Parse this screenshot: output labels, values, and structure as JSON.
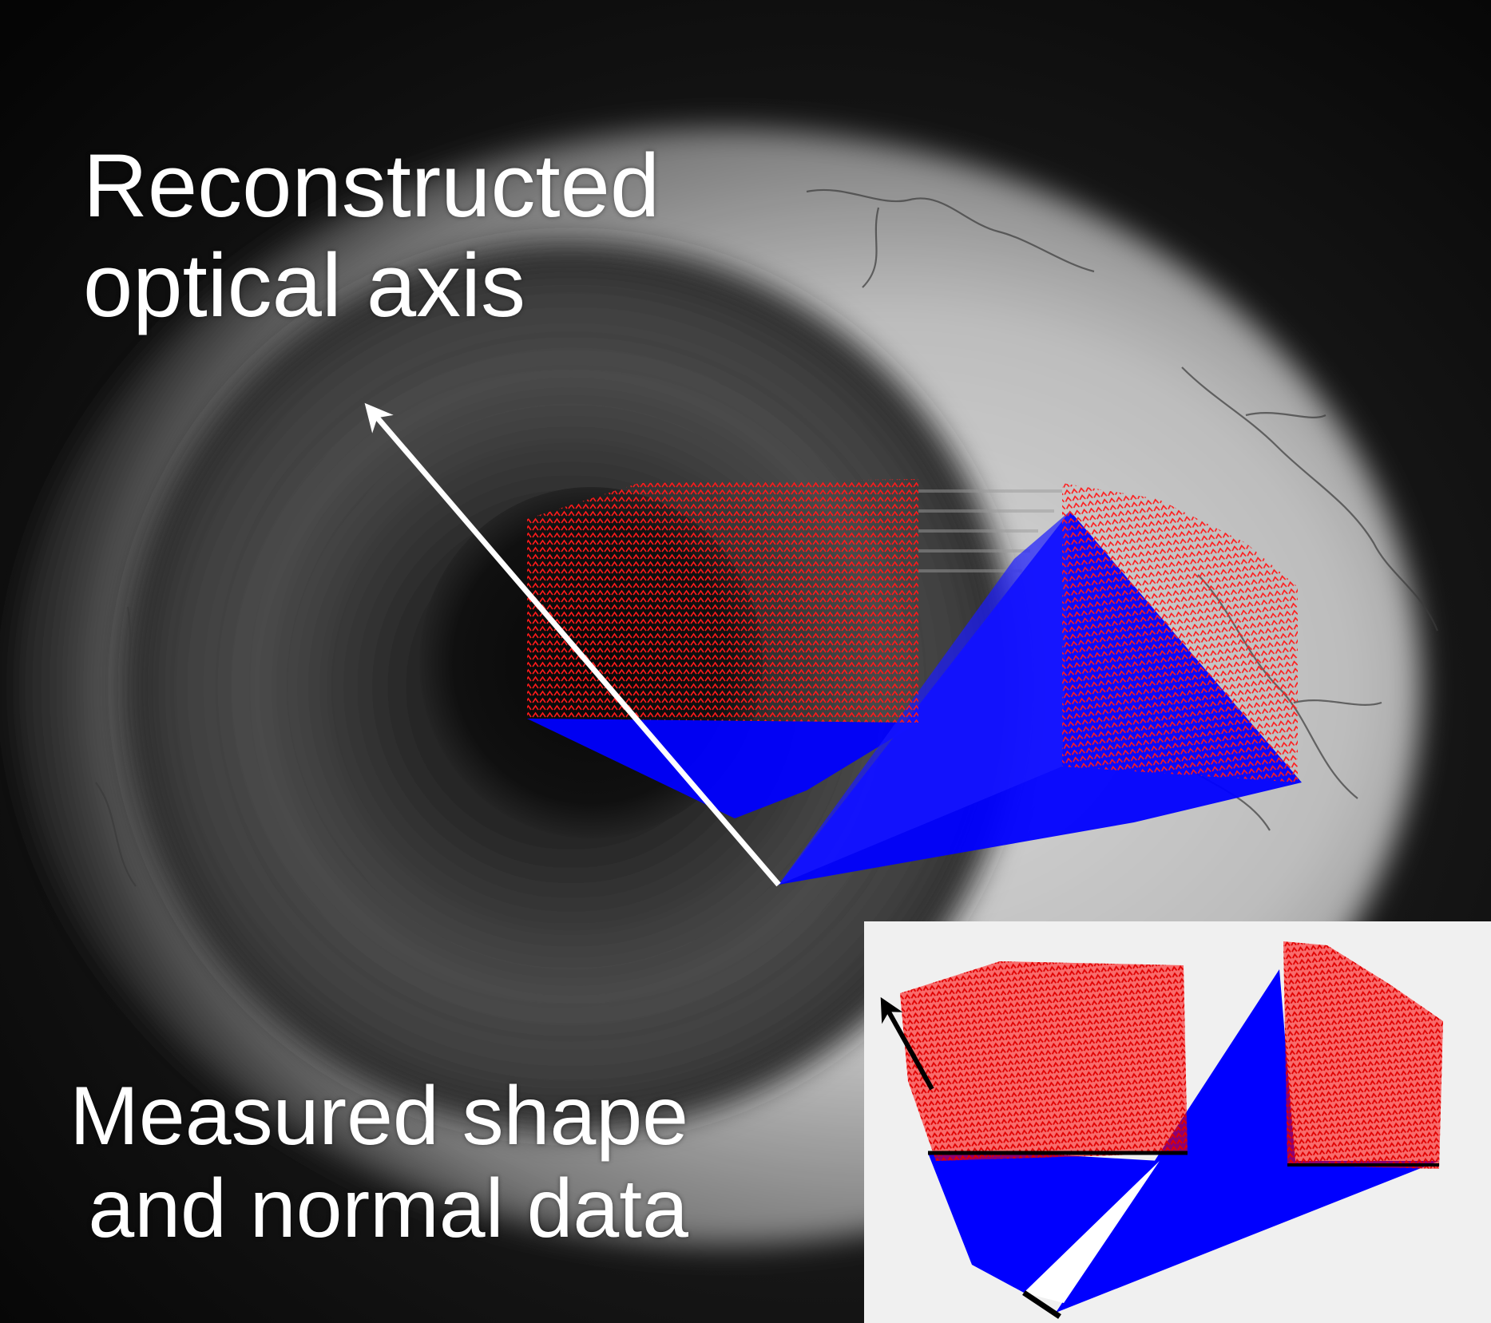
{
  "labels": {
    "axis_line1": "Reconstructed",
    "axis_line2": "optical axis",
    "data_line1": "Measured shape",
    "data_line2": "and normal data"
  },
  "colors": {
    "normals": "#ff0000",
    "rays": "#0000ff",
    "axis_arrow": "#ffffff",
    "inset_arrow": "#000000",
    "inset_background": "#f0f0f0"
  }
}
